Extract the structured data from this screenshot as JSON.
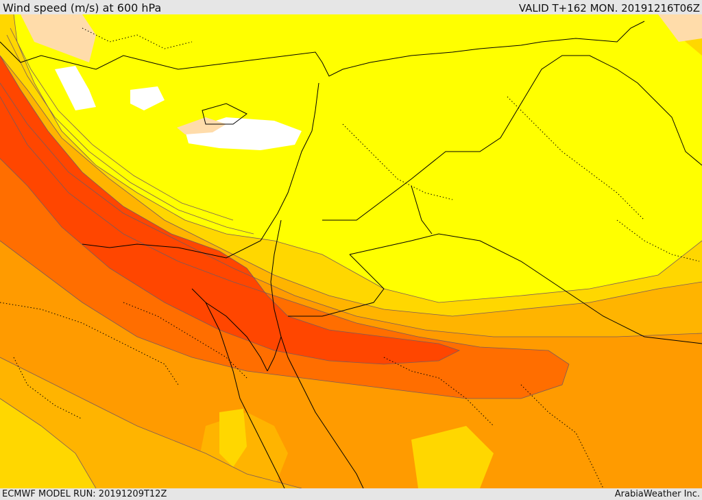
{
  "header": {
    "title": "Wind speed (m/s) at 600 hPa",
    "valid": "VALID T+162 MON. 20191216T06Z"
  },
  "footer": {
    "model_run": "ECMWF MODEL RUN: 20191209T12Z",
    "credit": "ArabiaWeather Inc."
  },
  "colors": {
    "calm": "#ffffff",
    "pale": "#ffdcaa",
    "yellow": "#ffff00",
    "gold": "#ffd700",
    "amber": "#ffb400",
    "orange": "#ff9b00",
    "dark_orange": "#ff6e00",
    "red_orange": "#ff4600",
    "contour": "#7a5a5a",
    "border": "#000000"
  }
}
